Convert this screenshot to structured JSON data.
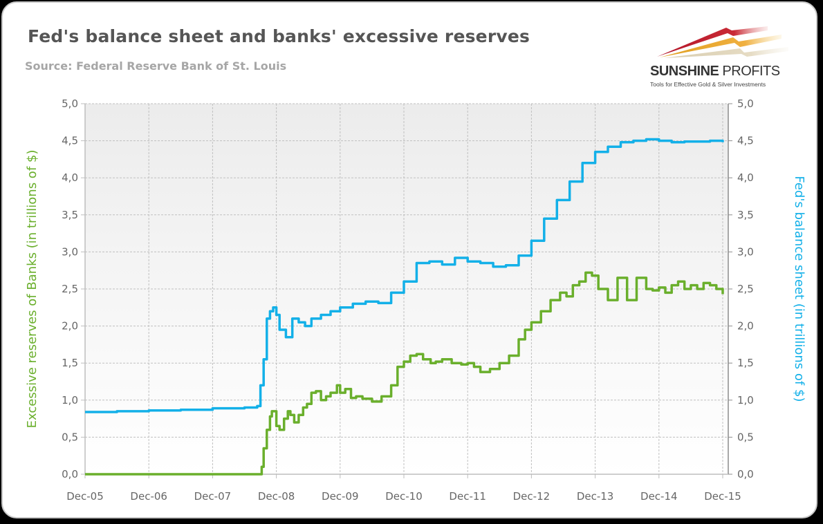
{
  "header": {
    "title": "Fed's balance sheet and banks' excessive reserves",
    "subtitle": "Source: Federal Reserve Bank of St. Louis"
  },
  "logo": {
    "name_bold": "SUNSHINE",
    "name_light": "PROFITS",
    "tagline": "Tools for Effective Gold & Silver Investments"
  },
  "colors": {
    "reserves": "#6aaf2c",
    "balance_sheet": "#13b0e8",
    "grid": "#bfbfbf",
    "axis": "#bfbfbf"
  },
  "chart_data": {
    "type": "line",
    "title": "Fed's balance sheet and banks' excessive reserves",
    "subtitle": "Source: Federal Reserve Bank of St. Louis",
    "xlabel": "",
    "ylabel": "Excessive reserves of Banks (in trillions of $)",
    "ylabel_right": "Fed's balance sheet (in trillions of $)",
    "ylim": [
      0,
      5
    ],
    "ylim_right": [
      0,
      5
    ],
    "yticks": [
      "0,0",
      "0,5",
      "1,0",
      "1,5",
      "2,0",
      "2,5",
      "3,0",
      "3,5",
      "4,0",
      "4,5",
      "5,0"
    ],
    "categories": [
      "Dec-05",
      "Dec-06",
      "Dec-07",
      "Dec-08",
      "Dec-09",
      "Dec-10",
      "Dec-11",
      "Dec-12",
      "Dec-13",
      "Dec-14",
      "Dec-15"
    ],
    "grid": true,
    "legend": "none (axis titles colored by series)",
    "x_unit": "years since Dec-05",
    "series": [
      {
        "name": "Excessive reserves of Banks",
        "axis": "left",
        "color": "#6aaf2c",
        "x": [
          0.0,
          1.0,
          2.0,
          2.7,
          2.77,
          2.8,
          2.85,
          2.9,
          2.93,
          3.0,
          3.05,
          3.12,
          3.18,
          3.22,
          3.28,
          3.35,
          3.42,
          3.48,
          3.55,
          3.62,
          3.7,
          3.78,
          3.85,
          3.95,
          4.0,
          4.08,
          4.17,
          4.25,
          4.35,
          4.5,
          4.65,
          4.8,
          4.9,
          5.0,
          5.1,
          5.2,
          5.3,
          5.42,
          5.5,
          5.6,
          5.75,
          5.9,
          6.0,
          6.1,
          6.2,
          6.35,
          6.5,
          6.65,
          6.8,
          6.9,
          7.0,
          7.15,
          7.3,
          7.45,
          7.55,
          7.65,
          7.75,
          7.85,
          7.95,
          8.05,
          8.2,
          8.35,
          8.5,
          8.65,
          8.8,
          8.9,
          9.0,
          9.1,
          9.2,
          9.3,
          9.4,
          9.5,
          9.6,
          9.7,
          9.8,
          9.9,
          10.0
        ],
        "values": [
          0.0,
          0.0,
          0.0,
          0.0,
          0.1,
          0.35,
          0.6,
          0.78,
          0.85,
          0.65,
          0.6,
          0.75,
          0.85,
          0.8,
          0.7,
          0.8,
          0.9,
          0.95,
          1.1,
          1.12,
          1.0,
          1.05,
          1.1,
          1.2,
          1.1,
          1.15,
          1.03,
          1.05,
          1.02,
          0.98,
          1.05,
          1.2,
          1.45,
          1.52,
          1.6,
          1.62,
          1.55,
          1.5,
          1.52,
          1.55,
          1.5,
          1.48,
          1.5,
          1.45,
          1.38,
          1.42,
          1.5,
          1.6,
          1.82,
          1.95,
          2.05,
          2.2,
          2.35,
          2.45,
          2.4,
          2.55,
          2.6,
          2.72,
          2.68,
          2.5,
          2.35,
          2.65,
          2.35,
          2.65,
          2.5,
          2.48,
          2.52,
          2.45,
          2.55,
          2.6,
          2.5,
          2.55,
          2.5,
          2.58,
          2.55,
          2.5,
          2.43
        ]
      },
      {
        "name": "Fed's balance sheet",
        "axis": "right",
        "color": "#13b0e8",
        "x": [
          0.0,
          0.5,
          1.0,
          1.5,
          2.0,
          2.5,
          2.7,
          2.75,
          2.8,
          2.85,
          2.9,
          2.95,
          3.0,
          3.05,
          3.15,
          3.25,
          3.35,
          3.45,
          3.55,
          3.7,
          3.85,
          4.0,
          4.2,
          4.4,
          4.6,
          4.8,
          5.0,
          5.2,
          5.4,
          5.6,
          5.8,
          6.0,
          6.2,
          6.4,
          6.6,
          6.8,
          7.0,
          7.2,
          7.4,
          7.6,
          7.8,
          8.0,
          8.2,
          8.4,
          8.6,
          8.8,
          9.0,
          9.2,
          9.4,
          9.6,
          9.8,
          10.0
        ],
        "values": [
          0.84,
          0.85,
          0.86,
          0.87,
          0.89,
          0.9,
          0.92,
          1.2,
          1.55,
          2.1,
          2.2,
          2.25,
          2.15,
          1.95,
          1.85,
          2.1,
          2.05,
          2.0,
          2.1,
          2.15,
          2.2,
          2.25,
          2.3,
          2.33,
          2.31,
          2.45,
          2.6,
          2.85,
          2.87,
          2.83,
          2.92,
          2.87,
          2.85,
          2.8,
          2.82,
          2.95,
          3.15,
          3.45,
          3.7,
          3.95,
          4.2,
          4.35,
          4.42,
          4.48,
          4.5,
          4.52,
          4.5,
          4.48,
          4.49,
          4.49,
          4.5,
          4.48
        ]
      }
    ]
  }
}
